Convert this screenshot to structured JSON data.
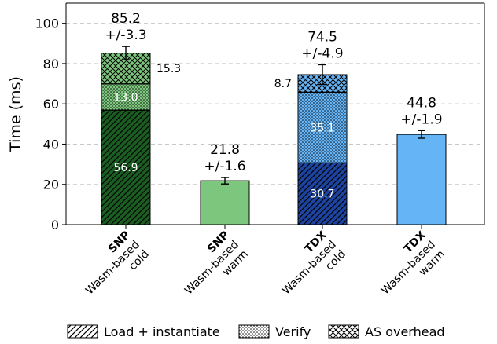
{
  "chart_data": {
    "type": "bar",
    "stacked": true,
    "ylabel": "Time (ms)",
    "ylim": [
      0,
      110
    ],
    "yticks": [
      0,
      20,
      40,
      60,
      80,
      100
    ],
    "grid": "horizontal-dashed",
    "legend_position": "bottom",
    "legend": [
      {
        "name": "Load + instantiate",
        "pattern": "diagonal"
      },
      {
        "name": "Verify",
        "pattern": "dots"
      },
      {
        "name": "AS overhead",
        "pattern": "crosshatch"
      }
    ],
    "categories": [
      {
        "platform": "SNP",
        "line1": "Wasm-based",
        "line2": "cold"
      },
      {
        "platform": "SNP",
        "line1": "Wasm-based",
        "line2": "warm"
      },
      {
        "platform": "TDX",
        "line1": "Wasm-based",
        "line2": "cold"
      },
      {
        "platform": "TDX",
        "line1": "Wasm-based",
        "line2": "warm"
      }
    ],
    "bars": [
      {
        "total": "85.2",
        "total_value": 85.2,
        "error": "+/-3.3",
        "error_value": 3.3,
        "segments": [
          {
            "value": 56.9,
            "label": "56.9",
            "color": "#1a5e22",
            "pattern": "diagonal",
            "label_pos": "inside"
          },
          {
            "value": 13.0,
            "label": "13.0",
            "color": "#7dc67d",
            "pattern": "dots",
            "label_pos": "inside"
          },
          {
            "value": 15.3,
            "label": "15.3",
            "color": "#7dc67d",
            "pattern": "crosshatch",
            "label_pos": "right"
          }
        ]
      },
      {
        "total": "21.8",
        "total_value": 21.8,
        "error": "+/-1.6",
        "error_value": 1.6,
        "segments": [
          {
            "value": 21.8,
            "label": "",
            "color": "#7dc67d",
            "pattern": "none",
            "label_pos": "none"
          }
        ]
      },
      {
        "total": "74.5",
        "total_value": 74.5,
        "error": "+/-4.9",
        "error_value": 4.9,
        "segments": [
          {
            "value": 30.7,
            "label": "30.7",
            "color": "#1c44a0",
            "pattern": "diagonal",
            "label_pos": "inside"
          },
          {
            "value": 35.1,
            "label": "35.1",
            "color": "#64b4f6",
            "pattern": "dots",
            "label_pos": "inside"
          },
          {
            "value": 8.7,
            "label": "8.7",
            "color": "#64b4f6",
            "pattern": "crosshatch",
            "label_pos": "left"
          }
        ]
      },
      {
        "total": "44.8",
        "total_value": 44.8,
        "error": "+/-1.9",
        "error_value": 1.9,
        "segments": [
          {
            "value": 44.8,
            "label": "",
            "color": "#64b4f6",
            "pattern": "none",
            "label_pos": "none"
          }
        ]
      }
    ]
  }
}
